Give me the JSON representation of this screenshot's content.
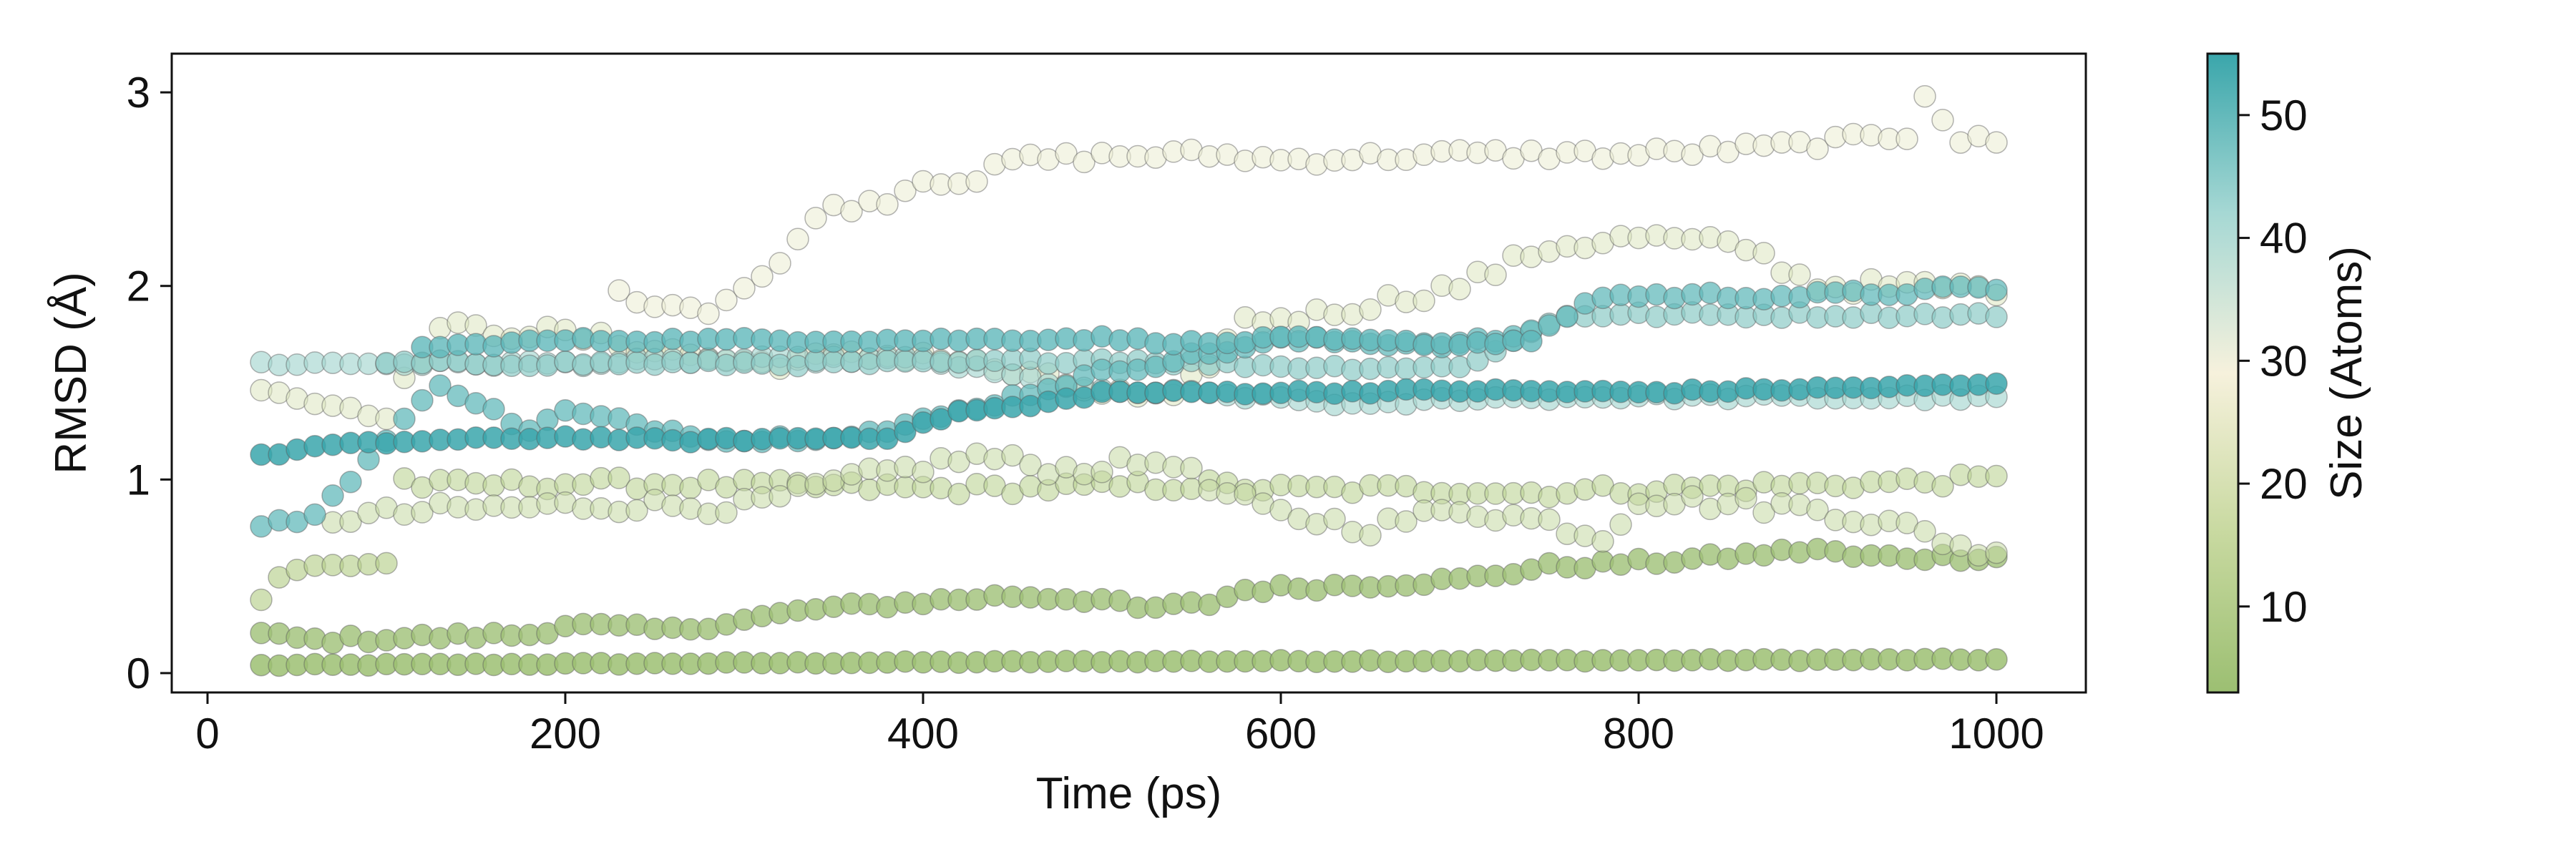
{
  "chart_data": {
    "type": "scatter",
    "title": "",
    "xlabel": "Time (ps)",
    "ylabel": "RMSD (Å)",
    "xlim": [
      -20,
      1050
    ],
    "ylim": [
      -0.1,
      3.2
    ],
    "xticks": [
      0,
      200,
      400,
      600,
      800,
      1000
    ],
    "yticks": [
      0,
      1,
      2,
      3
    ],
    "grid": false,
    "legend": "none",
    "point_edge_color": "#5a5a5a",
    "colorbar": {
      "label": "Size (Atoms)",
      "range": [
        3,
        55
      ],
      "ticks": [
        10,
        20,
        30,
        40,
        50
      ],
      "colormap": [
        "#9cbf72",
        "#c8d9a0",
        "#f6f1dc",
        "#a6d8d4",
        "#3aa6ab"
      ]
    },
    "series": [
      {
        "size": 3,
        "color": "#9cbf72",
        "alpha": 0.85,
        "x": [
          30,
          1000
        ],
        "y": [
          0.04,
          0.07
        ],
        "x_step": 10,
        "trend": [
          [
            30,
            0.04
          ],
          [
            500,
            0.06
          ],
          [
            1000,
            0.07
          ]
        ],
        "noise": 0.005
      },
      {
        "size": 5,
        "color": "#9fc177",
        "alpha": 0.8,
        "x_step": 10,
        "trend": [
          [
            30,
            0.2
          ],
          [
            60,
            0.17
          ],
          [
            180,
            0.2
          ],
          [
            200,
            0.25
          ],
          [
            260,
            0.22
          ],
          [
            340,
            0.33
          ],
          [
            450,
            0.4
          ],
          [
            500,
            0.38
          ],
          [
            520,
            0.33
          ],
          [
            560,
            0.36
          ],
          [
            580,
            0.43
          ],
          [
            700,
            0.48
          ],
          [
            750,
            0.55
          ],
          [
            800,
            0.57
          ],
          [
            850,
            0.6
          ],
          [
            900,
            0.64
          ],
          [
            920,
            0.6
          ],
          [
            1000,
            0.6
          ]
        ],
        "noise": 0.02
      },
      {
        "size": 12,
        "color": "#b7cf8c",
        "alpha": 0.65,
        "x_step": 10,
        "trend": [
          [
            30,
            0.38
          ],
          [
            40,
            0.5
          ],
          [
            60,
            0.55
          ],
          [
            100,
            0.57
          ]
        ],
        "noise": 0.02
      },
      {
        "size": 14,
        "color": "#bcd395",
        "alpha": 0.6,
        "x_step": 10,
        "trend": [
          [
            110,
            1.0
          ],
          [
            120,
            0.97
          ],
          [
            200,
            0.98
          ],
          [
            250,
            0.98
          ],
          [
            300,
            0.97
          ],
          [
            420,
            0.95
          ],
          [
            560,
            0.97
          ],
          [
            600,
            0.95
          ],
          [
            700,
            0.95
          ],
          [
            730,
            0.93
          ],
          [
            800,
            0.95
          ],
          [
            1000,
            1.0
          ]
        ],
        "noise": 0.03
      },
      {
        "size": 16,
        "color": "#c5d9a3",
        "alpha": 0.55,
        "x_step": 10,
        "trend": [
          [
            70,
            0.8
          ],
          [
            130,
            0.84
          ],
          [
            220,
            0.87
          ],
          [
            300,
            0.86
          ],
          [
            360,
            1.0
          ],
          [
            430,
            1.12
          ],
          [
            480,
            1.05
          ],
          [
            540,
            1.1
          ],
          [
            560,
            0.95
          ],
          [
            600,
            0.82
          ],
          [
            650,
            0.75
          ],
          [
            700,
            0.85
          ],
          [
            750,
            0.78
          ],
          [
            780,
            0.7
          ],
          [
            800,
            0.9
          ],
          [
            900,
            0.85
          ],
          [
            950,
            0.75
          ],
          [
            1000,
            0.6
          ]
        ],
        "noise": 0.04
      },
      {
        "size": 22,
        "color": "#dce6bf",
        "alpha": 0.55,
        "x_step": 10,
        "trend": [
          [
            30,
            1.5
          ],
          [
            60,
            1.4
          ],
          [
            100,
            1.35
          ],
          [
            130,
            1.78
          ],
          [
            200,
            1.75
          ],
          [
            300,
            1.6
          ],
          [
            400,
            1.65
          ],
          [
            500,
            1.45
          ],
          [
            540,
            1.4
          ],
          [
            580,
            1.82
          ],
          [
            620,
            1.85
          ],
          [
            700,
            2.0
          ],
          [
            750,
            2.2
          ],
          [
            800,
            2.25
          ],
          [
            860,
            2.2
          ],
          [
            900,
            2.0
          ],
          [
            1000,
            1.99
          ]
        ],
        "noise": 0.04
      },
      {
        "size": 30,
        "color": "#ecefd6",
        "alpha": 0.6,
        "x_step": 10,
        "trend": [
          [
            230,
            1.95
          ],
          [
            280,
            1.88
          ],
          [
            320,
            2.1
          ],
          [
            340,
            2.38
          ],
          [
            380,
            2.45
          ],
          [
            400,
            2.55
          ],
          [
            430,
            2.55
          ],
          [
            450,
            2.65
          ],
          [
            500,
            2.67
          ],
          [
            560,
            2.68
          ],
          [
            600,
            2.65
          ],
          [
            700,
            2.68
          ],
          [
            800,
            2.68
          ],
          [
            880,
            2.72
          ],
          [
            950,
            2.78
          ],
          [
            960,
            3.0
          ],
          [
            980,
            2.75
          ],
          [
            1000,
            2.75
          ]
        ],
        "noise": 0.03
      },
      {
        "size": 38,
        "color": "#a4d5cf",
        "alpha": 0.65,
        "x_step": 10,
        "trend": [
          [
            30,
            1.6
          ],
          [
            100,
            1.6
          ],
          [
            200,
            1.6
          ],
          [
            300,
            1.62
          ],
          [
            400,
            1.62
          ],
          [
            500,
            1.45
          ],
          [
            540,
            1.45
          ],
          [
            600,
            1.42
          ],
          [
            650,
            1.38
          ],
          [
            700,
            1.42
          ],
          [
            800,
            1.43
          ],
          [
            1000,
            1.42
          ]
        ],
        "noise": 0.015
      },
      {
        "size": 42,
        "color": "#8bcbc6",
        "alpha": 0.7,
        "x_step": 10,
        "trend": [
          [
            100,
            1.6
          ],
          [
            140,
            1.6
          ],
          [
            300,
            1.6
          ],
          [
            400,
            1.6
          ],
          [
            500,
            1.62
          ],
          [
            620,
            1.58
          ],
          [
            700,
            1.58
          ],
          [
            760,
            1.85
          ],
          [
            800,
            1.85
          ],
          [
            1000,
            1.85
          ]
        ],
        "noise": 0.015
      },
      {
        "size": 48,
        "color": "#63b9bb",
        "alpha": 0.75,
        "x_step": 10,
        "trend": [
          [
            30,
            0.75
          ],
          [
            60,
            0.82
          ],
          [
            90,
            1.1
          ],
          [
            130,
            1.5
          ],
          [
            180,
            1.25
          ],
          [
            200,
            1.35
          ],
          [
            260,
            1.25
          ],
          [
            300,
            1.2
          ],
          [
            380,
            1.25
          ],
          [
            500,
            1.55
          ],
          [
            600,
            1.72
          ],
          [
            700,
            1.7
          ],
          [
            740,
            1.75
          ],
          [
            780,
            1.95
          ],
          [
            900,
            1.95
          ],
          [
            1000,
            1.99
          ]
        ],
        "noise": 0.02
      },
      {
        "size": 52,
        "color": "#5fb8ba",
        "alpha": 0.8,
        "x_step": 10,
        "trend": [
          [
            120,
            1.68
          ],
          [
            200,
            1.72
          ],
          [
            300,
            1.72
          ],
          [
            400,
            1.72
          ],
          [
            500,
            1.73
          ],
          [
            560,
            1.7
          ],
          [
            600,
            1.73
          ],
          [
            700,
            1.7
          ],
          [
            740,
            1.72
          ]
        ],
        "noise": 0.012
      },
      {
        "size": 55,
        "color": "#3aa6ab",
        "alpha": 0.85,
        "x_step": 10,
        "trend": [
          [
            30,
            1.12
          ],
          [
            60,
            1.17
          ],
          [
            120,
            1.2
          ],
          [
            200,
            1.22
          ],
          [
            260,
            1.2
          ],
          [
            380,
            1.22
          ],
          [
            420,
            1.35
          ],
          [
            460,
            1.38
          ],
          [
            500,
            1.45
          ],
          [
            520,
            1.45
          ],
          [
            600,
            1.45
          ],
          [
            700,
            1.46
          ],
          [
            800,
            1.45
          ],
          [
            1000,
            1.49
          ]
        ],
        "noise": 0.01
      }
    ]
  }
}
